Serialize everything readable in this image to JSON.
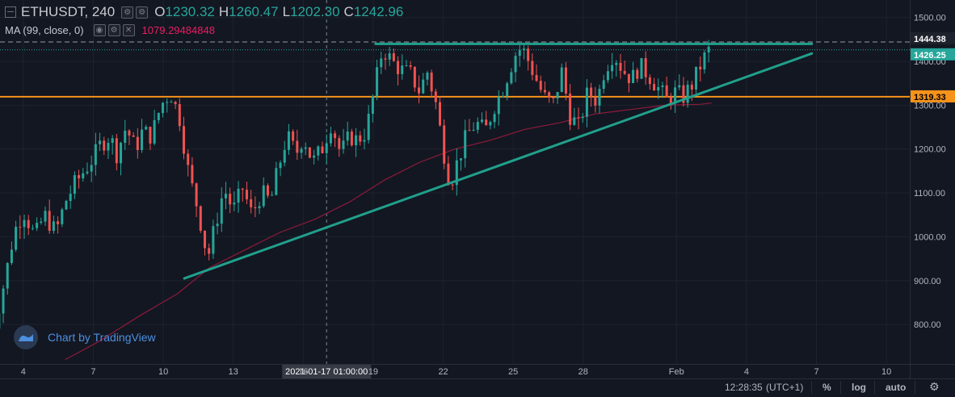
{
  "header": {
    "symbol": "ETHUSDT, 240",
    "ohlc": [
      {
        "label": "O",
        "value": "1230.32"
      },
      {
        "label": "H",
        "value": "1260.47"
      },
      {
        "label": "L",
        "value": "1202.30"
      },
      {
        "label": "C",
        "value": "1242.96"
      }
    ],
    "ma_label": "MA (99, close, 0)",
    "ma_value": "1079.29484848"
  },
  "watermark": "Chart by TradingView",
  "bottom_bar": {
    "time": "12:28:35",
    "timezone": "(UTC+1)",
    "percent": "%",
    "log": "log",
    "auto": "auto"
  },
  "colors": {
    "background": "#131722",
    "up": "#26a69a",
    "down": "#ef5350",
    "ma": "#8e1b3a",
    "horizontal_level": "#f7931a",
    "trendline": "#20a08c",
    "grid": "#1e222d"
  },
  "chart_data": {
    "type": "candlestick",
    "symbol": "ETHUSDT",
    "interval": "240",
    "y_axis": {
      "ticks": [
        "1500.00",
        "1400.00",
        "1300.00",
        "1200.00",
        "1100.00",
        "1000.00",
        "900.00",
        "800.00"
      ],
      "range": [
        710,
        1540
      ]
    },
    "x_axis": {
      "ticks": [
        {
          "label": "4",
          "day": 4
        },
        {
          "label": "7",
          "day": 7
        },
        {
          "label": "10",
          "day": 10
        },
        {
          "label": "13",
          "day": 13
        },
        {
          "label": "16",
          "day": 16
        },
        {
          "label": "19",
          "day": 19
        },
        {
          "label": "22",
          "day": 22
        },
        {
          "label": "25",
          "day": 25
        },
        {
          "label": "28",
          "day": 28
        },
        {
          "label": "Feb",
          "day": 32
        },
        {
          "label": "4",
          "day": 35
        },
        {
          "label": "7",
          "day": 38
        },
        {
          "label": "10",
          "day": 41
        }
      ],
      "range_days": [
        3,
        42
      ],
      "crosshair_label": "2021-01-17 01:00:00",
      "crosshair_day": 17
    },
    "price_labels": [
      {
        "value": 1444.38,
        "text": "1444.38",
        "style": "dark"
      },
      {
        "value": 1426.25,
        "text": "1426.25",
        "style": "green"
      },
      {
        "value": 1319.33,
        "text": "1319.33",
        "style": "orange"
      }
    ],
    "horizontal_levels": [
      {
        "value": 1319.33,
        "color": "#f7931a"
      }
    ],
    "trendlines": [
      {
        "from": {
          "day": 10.9,
          "price": 905
        },
        "to": {
          "day": 37.8,
          "price": 1418
        }
      },
      {
        "from": {
          "day": 19.1,
          "price": 1440
        },
        "to": {
          "day": 37.8,
          "price": 1440
        }
      }
    ],
    "close_path": [
      [
        2.6,
        760
      ],
      [
        3.2,
        900
      ],
      [
        3.6,
        1010
      ],
      [
        4.0,
        1060
      ],
      [
        4.5,
        1000
      ],
      [
        4.9,
        1050
      ],
      [
        5.4,
        1010
      ],
      [
        5.8,
        1080
      ],
      [
        6.2,
        1120
      ],
      [
        6.6,
        1150
      ],
      [
        7.0,
        1180
      ],
      [
        7.3,
        1210
      ],
      [
        7.7,
        1230
      ],
      [
        8.0,
        1190
      ],
      [
        8.4,
        1250
      ],
      [
        8.8,
        1200
      ],
      [
        9.1,
        1240
      ],
      [
        9.5,
        1230
      ],
      [
        9.9,
        1300
      ],
      [
        10.3,
        1330
      ],
      [
        10.7,
        1270
      ],
      [
        11.1,
        1140
      ],
      [
        11.5,
        1060
      ],
      [
        11.9,
        950
      ],
      [
        12.2,
        1020
      ],
      [
        12.6,
        1110
      ],
      [
        13.0,
        1060
      ],
      [
        13.4,
        1110
      ],
      [
        13.8,
        1050
      ],
      [
        14.2,
        1100
      ],
      [
        14.6,
        1080
      ],
      [
        14.9,
        1150
      ],
      [
        15.3,
        1230
      ],
      [
        15.7,
        1190
      ],
      [
        16.0,
        1230
      ],
      [
        16.4,
        1170
      ],
      [
        16.8,
        1200
      ],
      [
        17.2,
        1260
      ],
      [
        17.6,
        1190
      ],
      [
        18.0,
        1230
      ],
      [
        18.3,
        1220
      ],
      [
        18.7,
        1240
      ],
      [
        19.1,
        1350
      ],
      [
        19.4,
        1430
      ],
      [
        19.8,
        1400
      ],
      [
        20.2,
        1380
      ],
      [
        20.6,
        1370
      ],
      [
        21.0,
        1330
      ],
      [
        21.3,
        1380
      ],
      [
        21.7,
        1300
      ],
      [
        22.0,
        1200
      ],
      [
        22.3,
        1120
      ],
      [
        22.6,
        1170
      ],
      [
        23.0,
        1230
      ],
      [
        23.4,
        1260
      ],
      [
        23.8,
        1240
      ],
      [
        24.2,
        1300
      ],
      [
        24.5,
        1330
      ],
      [
        24.9,
        1390
      ],
      [
        25.2,
        1430
      ],
      [
        25.5,
        1420
      ],
      [
        25.9,
        1370
      ],
      [
        26.3,
        1320
      ],
      [
        26.7,
        1300
      ],
      [
        27.1,
        1380
      ],
      [
        27.4,
        1280
      ],
      [
        27.8,
        1250
      ],
      [
        28.2,
        1330
      ],
      [
        28.6,
        1310
      ],
      [
        28.9,
        1380
      ],
      [
        29.3,
        1420
      ],
      [
        29.7,
        1380
      ],
      [
        30.1,
        1360
      ],
      [
        30.4,
        1390
      ],
      [
        30.8,
        1370
      ],
      [
        31.2,
        1340
      ],
      [
        31.6,
        1310
      ],
      [
        31.9,
        1330
      ],
      [
        32.3,
        1320
      ],
      [
        32.7,
        1350
      ],
      [
        33.1,
        1400
      ],
      [
        33.4,
        1426
      ]
    ],
    "ma_path": [
      [
        5.8,
        720
      ],
      [
        7.2,
        760
      ],
      [
        9.0,
        820
      ],
      [
        10.6,
        870
      ],
      [
        12.0,
        930
      ],
      [
        13.5,
        970
      ],
      [
        15.0,
        1010
      ],
      [
        16.5,
        1040
      ],
      [
        18.0,
        1080
      ],
      [
        19.5,
        1130
      ],
      [
        21.0,
        1170
      ],
      [
        22.5,
        1200
      ],
      [
        24.0,
        1220
      ],
      [
        25.5,
        1245
      ],
      [
        27.0,
        1260
      ],
      [
        28.5,
        1280
      ],
      [
        30.0,
        1290
      ],
      [
        31.5,
        1300
      ],
      [
        33.0,
        1302
      ],
      [
        33.5,
        1305
      ]
    ]
  }
}
